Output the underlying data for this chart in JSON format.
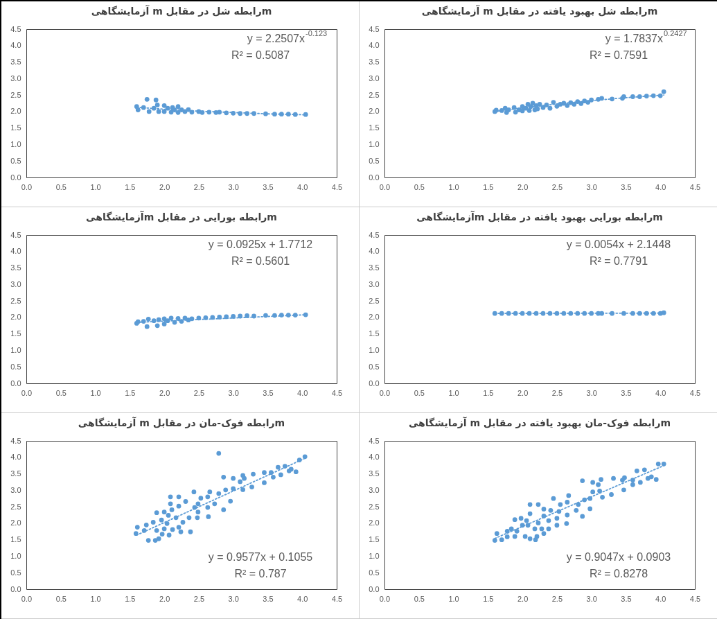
{
  "chart_data": [
    {
      "type": "scatter",
      "title": "mرابطه شل در مقابل m آزمایشگاهی",
      "grid": false,
      "xlim": [
        0,
        4.5
      ],
      "ylim": [
        0,
        4.5
      ],
      "xticks": [
        {
          "value": 0,
          "label": "0.0"
        },
        {
          "value": 0.5,
          "label": "0.5"
        },
        {
          "value": 1,
          "label": "1.0"
        },
        {
          "value": 1.5,
          "label": "1.5"
        },
        {
          "value": 2,
          "label": "2.0"
        },
        {
          "value": 2.5,
          "label": "2.5"
        },
        {
          "value": 3,
          "label": "3.0"
        },
        {
          "value": 3.5,
          "label": "3.5"
        },
        {
          "value": 4,
          "label": "4.0"
        },
        {
          "value": 4.5,
          "label": "4.5"
        }
      ],
      "yticks": [
        {
          "value": 0,
          "label": "0.0"
        },
        {
          "value": 0.5,
          "label": "0.5"
        },
        {
          "value": 1,
          "label": "1.0"
        },
        {
          "value": 1.5,
          "label": "1.5"
        },
        {
          "value": 2,
          "label": "2.0"
        },
        {
          "value": 2.5,
          "label": "2.5"
        },
        {
          "value": 3,
          "label": "3.0"
        },
        {
          "value": 3.5,
          "label": "3.5"
        },
        {
          "value": 4,
          "label": "4.0"
        },
        {
          "value": 4.5,
          "label": "4.5"
        }
      ],
      "annotations": [
        "y = 2.2507x$^{-0.123}$",
        "R² = 0.5087"
      ],
      "series": [
        {
          "type": "scatter",
          "marker": "circle",
          "color": "#5b9bd5",
          "x": [
            1.6,
            1.62,
            1.7,
            1.75,
            1.78,
            1.88,
            1.85,
            1.9,
            1.92,
            2.0,
            2.0,
            2.05,
            2.1,
            2.12,
            2.15,
            2.2,
            2.2,
            2.25,
            2.3,
            2.35,
            2.4,
            2.5,
            2.55,
            2.65,
            2.75,
            2.8,
            2.9,
            3.0,
            3.1,
            3.2,
            3.3,
            3.47,
            3.6,
            3.7,
            3.8,
            3.9,
            4.05
          ],
          "values": [
            2.15,
            2.05,
            2.12,
            2.37,
            2.0,
            2.35,
            2.1,
            2.2,
            2.0,
            2.18,
            2.0,
            2.1,
            1.98,
            2.12,
            2.05,
            2.15,
            1.97,
            2.05,
            2.0,
            2.06,
            1.98,
            2.0,
            1.97,
            1.98,
            1.97,
            1.98,
            1.96,
            1.95,
            1.94,
            1.94,
            1.94,
            1.93,
            1.92,
            1.92,
            1.92,
            1.91,
            1.91
          ]
        },
        {
          "type": "line",
          "color": "#5b9bd5",
          "line_style": "dotted",
          "x": [
            1.6,
            2,
            2.5,
            3,
            3.5,
            4.05
          ],
          "values": [
            2.13,
            2.07,
            2.01,
            1.97,
            1.93,
            1.9
          ]
        }
      ]
    },
    {
      "type": "scatter",
      "title": "mرابطه شل بهبود یافته در مقابل m آزمایشگاهی",
      "grid": false,
      "xlim": [
        0,
        4.5
      ],
      "ylim": [
        0,
        4.5
      ],
      "xticks": [
        {
          "value": 0,
          "label": "0.0"
        },
        {
          "value": 0.5,
          "label": "0.5"
        },
        {
          "value": 1,
          "label": "1.0"
        },
        {
          "value": 1.5,
          "label": "1.5"
        },
        {
          "value": 2,
          "label": "2.0"
        },
        {
          "value": 2.5,
          "label": "2.5"
        },
        {
          "value": 3,
          "label": "3.0"
        },
        {
          "value": 3.5,
          "label": "3.5"
        },
        {
          "value": 4,
          "label": "4.0"
        },
        {
          "value": 4.5,
          "label": "4.5"
        }
      ],
      "yticks": [
        {
          "value": 0,
          "label": "0.0"
        },
        {
          "value": 0.5,
          "label": "0.5"
        },
        {
          "value": 1,
          "label": "1.0"
        },
        {
          "value": 1.5,
          "label": "1.5"
        },
        {
          "value": 2,
          "label": "2.0"
        },
        {
          "value": 2.5,
          "label": "2.5"
        },
        {
          "value": 3,
          "label": "3.0"
        },
        {
          "value": 3.5,
          "label": "3.5"
        },
        {
          "value": 4,
          "label": "4.0"
        },
        {
          "value": 4.5,
          "label": "4.5"
        }
      ],
      "annotations": [
        "y = 1.7837x$^{0.2427}$",
        "R² = 0.7591"
      ],
      "series": [
        {
          "type": "scatter",
          "marker": "circle",
          "color": "#5b9bd5",
          "x": [
            1.6,
            1.62,
            1.7,
            1.75,
            1.77,
            1.8,
            1.88,
            1.9,
            1.95,
            2.0,
            2.0,
            2.05,
            2.08,
            2.1,
            2.12,
            2.15,
            2.18,
            2.2,
            2.22,
            2.25,
            2.3,
            2.35,
            2.4,
            2.45,
            2.5,
            2.55,
            2.6,
            2.65,
            2.7,
            2.75,
            2.8,
            2.85,
            2.9,
            2.95,
            3.0,
            3.1,
            3.15,
            3.3,
            3.45,
            3.47,
            3.6,
            3.7,
            3.8,
            3.9,
            4.0,
            4.05
          ],
          "values": [
            2.0,
            2.04,
            2.03,
            2.1,
            1.97,
            2.05,
            2.12,
            1.98,
            2.05,
            2.15,
            2.02,
            2.1,
            2.22,
            2.03,
            2.15,
            2.25,
            2.05,
            2.18,
            2.08,
            2.22,
            2.12,
            2.2,
            2.1,
            2.28,
            2.16,
            2.22,
            2.25,
            2.18,
            2.27,
            2.22,
            2.3,
            2.24,
            2.32,
            2.28,
            2.35,
            2.37,
            2.4,
            2.38,
            2.4,
            2.45,
            2.45,
            2.45,
            2.47,
            2.48,
            2.48,
            2.6
          ]
        },
        {
          "type": "line",
          "color": "#5b9bd5",
          "line_style": "dotted",
          "x": [
            1.6,
            2,
            2.5,
            3,
            3.5,
            4.05
          ],
          "values": [
            2.0,
            2.11,
            2.23,
            2.33,
            2.42,
            2.5
          ]
        }
      ]
    },
    {
      "type": "scatter",
      "title": "mرابطه بورایی در مقابل mآزمایشگاهی",
      "grid": false,
      "xlim": [
        0,
        4.5
      ],
      "ylim": [
        0,
        4.5
      ],
      "xticks": [
        {
          "value": 0,
          "label": "0.0"
        },
        {
          "value": 0.5,
          "label": "0.5"
        },
        {
          "value": 1,
          "label": "1.0"
        },
        {
          "value": 1.5,
          "label": "1.5"
        },
        {
          "value": 2,
          "label": "2.0"
        },
        {
          "value": 2.5,
          "label": "2.5"
        },
        {
          "value": 3,
          "label": "3.0"
        },
        {
          "value": 3.5,
          "label": "3.5"
        },
        {
          "value": 4,
          "label": "4.0"
        },
        {
          "value": 4.5,
          "label": "4.5"
        }
      ],
      "yticks": [
        {
          "value": 0,
          "label": "0.0"
        },
        {
          "value": 0.5,
          "label": "0.5"
        },
        {
          "value": 1,
          "label": "1.0"
        },
        {
          "value": 1.5,
          "label": "1.5"
        },
        {
          "value": 2,
          "label": "2.0"
        },
        {
          "value": 2.5,
          "label": "2.5"
        },
        {
          "value": 3,
          "label": "3.0"
        },
        {
          "value": 3.5,
          "label": "3.5"
        },
        {
          "value": 4,
          "label": "4.0"
        },
        {
          "value": 4.5,
          "label": "4.5"
        }
      ],
      "annotations": [
        "y = 0.0925x + 1.7712",
        "R² = 0.5601"
      ],
      "series": [
        {
          "type": "scatter",
          "marker": "circle",
          "color": "#5b9bd5",
          "x": [
            1.6,
            1.62,
            1.7,
            1.75,
            1.77,
            1.85,
            1.9,
            1.92,
            2.0,
            2.0,
            2.05,
            2.1,
            2.15,
            2.2,
            2.25,
            2.3,
            2.35,
            2.4,
            2.5,
            2.6,
            2.7,
            2.8,
            2.9,
            3.0,
            3.1,
            3.2,
            3.3,
            3.47,
            3.6,
            3.7,
            3.8,
            3.9,
            4.05
          ],
          "values": [
            1.82,
            1.87,
            1.88,
            1.72,
            1.95,
            1.9,
            1.75,
            1.93,
            1.8,
            1.96,
            1.9,
            1.98,
            1.85,
            1.97,
            1.88,
            1.98,
            1.92,
            1.96,
            1.98,
            1.99,
            2.0,
            2.01,
            2.02,
            2.03,
            2.04,
            2.05,
            2.04,
            2.06,
            2.06,
            2.07,
            2.07,
            2.07,
            2.08
          ]
        },
        {
          "type": "line",
          "color": "#5b9bd5",
          "line_style": "dotted",
          "x": [
            1.6,
            4.05
          ],
          "values": [
            1.85,
            2.08
          ]
        }
      ]
    },
    {
      "type": "scatter",
      "title": "mرابطه بورایی بهبود یافته در مقابل mآزمایشگاهی",
      "grid": false,
      "xlim": [
        0,
        4.5
      ],
      "ylim": [
        0,
        4.5
      ],
      "xticks": [
        {
          "value": 0,
          "label": "0.0"
        },
        {
          "value": 0.5,
          "label": "0.5"
        },
        {
          "value": 1,
          "label": "1.0"
        },
        {
          "value": 1.5,
          "label": "1.5"
        },
        {
          "value": 2,
          "label": "2.0"
        },
        {
          "value": 2.5,
          "label": "2.5"
        },
        {
          "value": 3,
          "label": "3.0"
        },
        {
          "value": 3.5,
          "label": "3.5"
        },
        {
          "value": 4,
          "label": "4.0"
        },
        {
          "value": 4.5,
          "label": "4.5"
        }
      ],
      "yticks": [
        {
          "value": 0,
          "label": "0.0"
        },
        {
          "value": 0.5,
          "label": "0.5"
        },
        {
          "value": 1,
          "label": "1.0"
        },
        {
          "value": 1.5,
          "label": "1.5"
        },
        {
          "value": 2,
          "label": "2.0"
        },
        {
          "value": 2.5,
          "label": "2.5"
        },
        {
          "value": 3,
          "label": "3.0"
        },
        {
          "value": 3.5,
          "label": "3.5"
        },
        {
          "value": 4,
          "label": "4.0"
        },
        {
          "value": 4.5,
          "label": "4.5"
        }
      ],
      "annotations": [
        "y = 0.0054x + 2.1448",
        "R² = 0.7791"
      ],
      "series": [
        {
          "type": "scatter",
          "marker": "circle",
          "color": "#5b9bd5",
          "x": [
            1.6,
            1.7,
            1.8,
            1.9,
            2.0,
            2.1,
            2.2,
            2.3,
            2.4,
            2.5,
            2.6,
            2.7,
            2.8,
            2.9,
            3.0,
            3.1,
            3.15,
            3.3,
            3.47,
            3.6,
            3.7,
            3.8,
            3.9,
            4.0,
            4.05
          ],
          "values": [
            2.12,
            2.12,
            2.12,
            2.12,
            2.12,
            2.12,
            2.12,
            2.12,
            2.12,
            2.12,
            2.12,
            2.12,
            2.12,
            2.12,
            2.12,
            2.12,
            2.12,
            2.12,
            2.12,
            2.12,
            2.12,
            2.12,
            2.12,
            2.12,
            2.14
          ]
        },
        {
          "type": "line",
          "color": "#5b9bd5",
          "line_style": "dotted",
          "x": [
            1.6,
            4.05
          ],
          "values": [
            2.12,
            2.13
          ]
        }
      ]
    },
    {
      "type": "scatter",
      "title": "mرابطه فوک-مان در مقابل m آزمایشگاهی",
      "grid": false,
      "xlim": [
        0,
        4.5
      ],
      "ylim": [
        0,
        4.5
      ],
      "xticks": [
        {
          "value": 0,
          "label": "0.0"
        },
        {
          "value": 0.5,
          "label": "0.5"
        },
        {
          "value": 1,
          "label": "1.0"
        },
        {
          "value": 1.5,
          "label": "1.5"
        },
        {
          "value": 2,
          "label": "2.0"
        },
        {
          "value": 2.5,
          "label": "2.5"
        },
        {
          "value": 3,
          "label": "3.0"
        },
        {
          "value": 3.5,
          "label": "3.5"
        },
        {
          "value": 4,
          "label": "4.0"
        },
        {
          "value": 4.5,
          "label": "4.5"
        }
      ],
      "yticks": [
        {
          "value": 0,
          "label": "0.0"
        },
        {
          "value": 0.5,
          "label": "0.5"
        },
        {
          "value": 1,
          "label": "1.0"
        },
        {
          "value": 1.5,
          "label": "1.5"
        },
        {
          "value": 2,
          "label": "2.0"
        },
        {
          "value": 2.5,
          "label": "2.5"
        },
        {
          "value": 3,
          "label": "3.0"
        },
        {
          "value": 3.5,
          "label": "3.5"
        },
        {
          "value": 4,
          "label": "4.0"
        },
        {
          "value": 4.5,
          "label": "4.5"
        }
      ],
      "annotations": [
        "y = 0.9577x + 0.1055",
        "R² = 0.787"
      ],
      "series": [
        {
          "type": "scatter",
          "marker": "circle",
          "color": "#5b9bd5",
          "x": [
            2.79,
            4.04,
            3.96,
            3.75,
            3.65,
            3.84,
            3.91,
            3.81,
            3.69,
            3.58,
            3.55,
            3.45,
            3.45,
            3.29,
            3.27,
            3.14,
            3.16,
            3.1,
            3.14,
            3.0,
            3.0,
            2.86,
            2.89,
            2.79,
            2.96,
            2.86,
            2.66,
            2.73,
            2.63,
            2.63,
            2.64,
            2.43,
            2.53,
            2.49,
            2.44,
            2.49,
            2.48,
            2.31,
            2.36,
            2.21,
            2.21,
            2.09,
            2.09,
            2.11,
            2.0,
            1.89,
            2.06,
            2.17,
            2.27,
            2.21,
            2.12,
            2.38,
            2.07,
            1.97,
            1.89,
            1.84,
            1.74,
            1.61,
            1.59,
            1.71,
            1.77,
            1.87,
            1.92,
            2.0,
            2.24,
            1.96,
            2.04
          ],
          "values": [
            4.12,
            4.02,
            3.92,
            3.73,
            3.7,
            3.64,
            3.56,
            3.59,
            3.47,
            3.4,
            3.54,
            3.54,
            3.23,
            3.49,
            3.1,
            3.45,
            3.36,
            3.26,
            3.02,
            3.36,
            3.05,
            3.4,
            3.01,
            2.9,
            2.67,
            2.41,
            2.95,
            2.59,
            2.8,
            2.48,
            2.2,
            2.95,
            2.76,
            2.59,
            2.48,
            2.34,
            2.17,
            2.66,
            2.17,
            2.8,
            2.52,
            2.8,
            2.59,
            2.41,
            2.34,
            2.32,
            2.24,
            2.17,
            2.03,
            1.88,
            1.81,
            1.74,
            1.64,
            1.67,
            1.78,
            2.03,
            1.95,
            1.88,
            1.69,
            1.78,
            1.48,
            1.48,
            1.53,
            1.83,
            1.74,
            2.1,
            1.99
          ]
        },
        {
          "type": "line",
          "color": "#5b9bd5",
          "line_style": "dotted",
          "x": [
            1.6,
            4.05
          ],
          "values": [
            1.64,
            3.98
          ]
        }
      ]
    },
    {
      "type": "scatter",
      "title": "mرابطه فوک-مان بهبود یافته در مقابل m آزمایشگاهی",
      "grid": false,
      "xlim": [
        0,
        4.5
      ],
      "ylim": [
        0,
        4.5
      ],
      "xticks": [
        {
          "value": 0,
          "label": "0.0"
        },
        {
          "value": 0.5,
          "label": "0.5"
        },
        {
          "value": 1,
          "label": "1.0"
        },
        {
          "value": 1.5,
          "label": "1.5"
        },
        {
          "value": 2,
          "label": "2.0"
        },
        {
          "value": 2.5,
          "label": "2.5"
        },
        {
          "value": 3,
          "label": "3.0"
        },
        {
          "value": 3.5,
          "label": "3.5"
        },
        {
          "value": 4,
          "label": "4.0"
        },
        {
          "value": 4.5,
          "label": "4.5"
        }
      ],
      "yticks": [
        {
          "value": 0,
          "label": "0.0"
        },
        {
          "value": 0.5,
          "label": "0.5"
        },
        {
          "value": 1,
          "label": "1.0"
        },
        {
          "value": 1.5,
          "label": "1.5"
        },
        {
          "value": 2,
          "label": "2.0"
        },
        {
          "value": 2.5,
          "label": "2.5"
        },
        {
          "value": 3,
          "label": "3.0"
        },
        {
          "value": 3.5,
          "label": "3.5"
        },
        {
          "value": 4,
          "label": "4.0"
        },
        {
          "value": 4.5,
          "label": "4.5"
        }
      ],
      "annotations": [
        "y = 0.9047x + 0.0903",
        "R² = 0.8278"
      ],
      "series": [
        {
          "type": "scatter",
          "marker": "circle",
          "color": "#5b9bd5",
          "x": [
            4.05,
            3.97,
            3.77,
            3.66,
            3.87,
            3.94,
            3.82,
            3.71,
            3.6,
            3.6,
            3.48,
            3.45,
            3.47,
            3.32,
            3.29,
            3.14,
            3.1,
            3.02,
            3.12,
            3.16,
            3.02,
            2.87,
            2.98,
            2.98,
            2.9,
            2.81,
            2.87,
            2.78,
            2.67,
            2.65,
            2.65,
            2.64,
            2.55,
            2.53,
            2.5,
            2.5,
            2.45,
            2.41,
            2.31,
            2.31,
            2.38,
            2.23,
            2.23,
            2.11,
            2.11,
            2.06,
            1.98,
            1.89,
            2.0,
            2.18,
            2.28,
            2.31,
            2.21,
            2.19,
            2.11,
            2.04,
            1.89,
            1.84,
            1.78,
            1.78,
            1.7,
            1.63,
            1.6,
            1.92,
            2.08,
            2.38
          ],
          "values": [
            3.8,
            3.8,
            3.62,
            3.59,
            3.41,
            3.33,
            3.36,
            3.24,
            3.31,
            3.17,
            3.38,
            3.31,
            3.01,
            3.36,
            2.87,
            3.33,
            3.17,
            3.24,
            2.98,
            2.79,
            2.95,
            3.29,
            2.75,
            2.44,
            2.71,
            2.57,
            2.21,
            2.39,
            2.84,
            2.64,
            2.25,
            1.99,
            2.57,
            2.36,
            2.15,
            1.94,
            2.75,
            2.39,
            2.43,
            2.22,
            2.08,
            2.57,
            2.01,
            2.57,
            2.29,
            2.08,
            2.15,
            2.11,
            1.94,
            1.83,
            1.83,
            1.69,
            1.6,
            1.5,
            1.53,
            1.6,
            1.6,
            1.83,
            1.76,
            1.59,
            1.5,
            1.69,
            1.48,
            1.76,
            1.94,
            1.83
          ]
        },
        {
          "type": "line",
          "color": "#5b9bd5",
          "line_style": "dotted",
          "x": [
            1.6,
            4.05
          ],
          "values": [
            1.54,
            3.75
          ]
        }
      ]
    }
  ]
}
